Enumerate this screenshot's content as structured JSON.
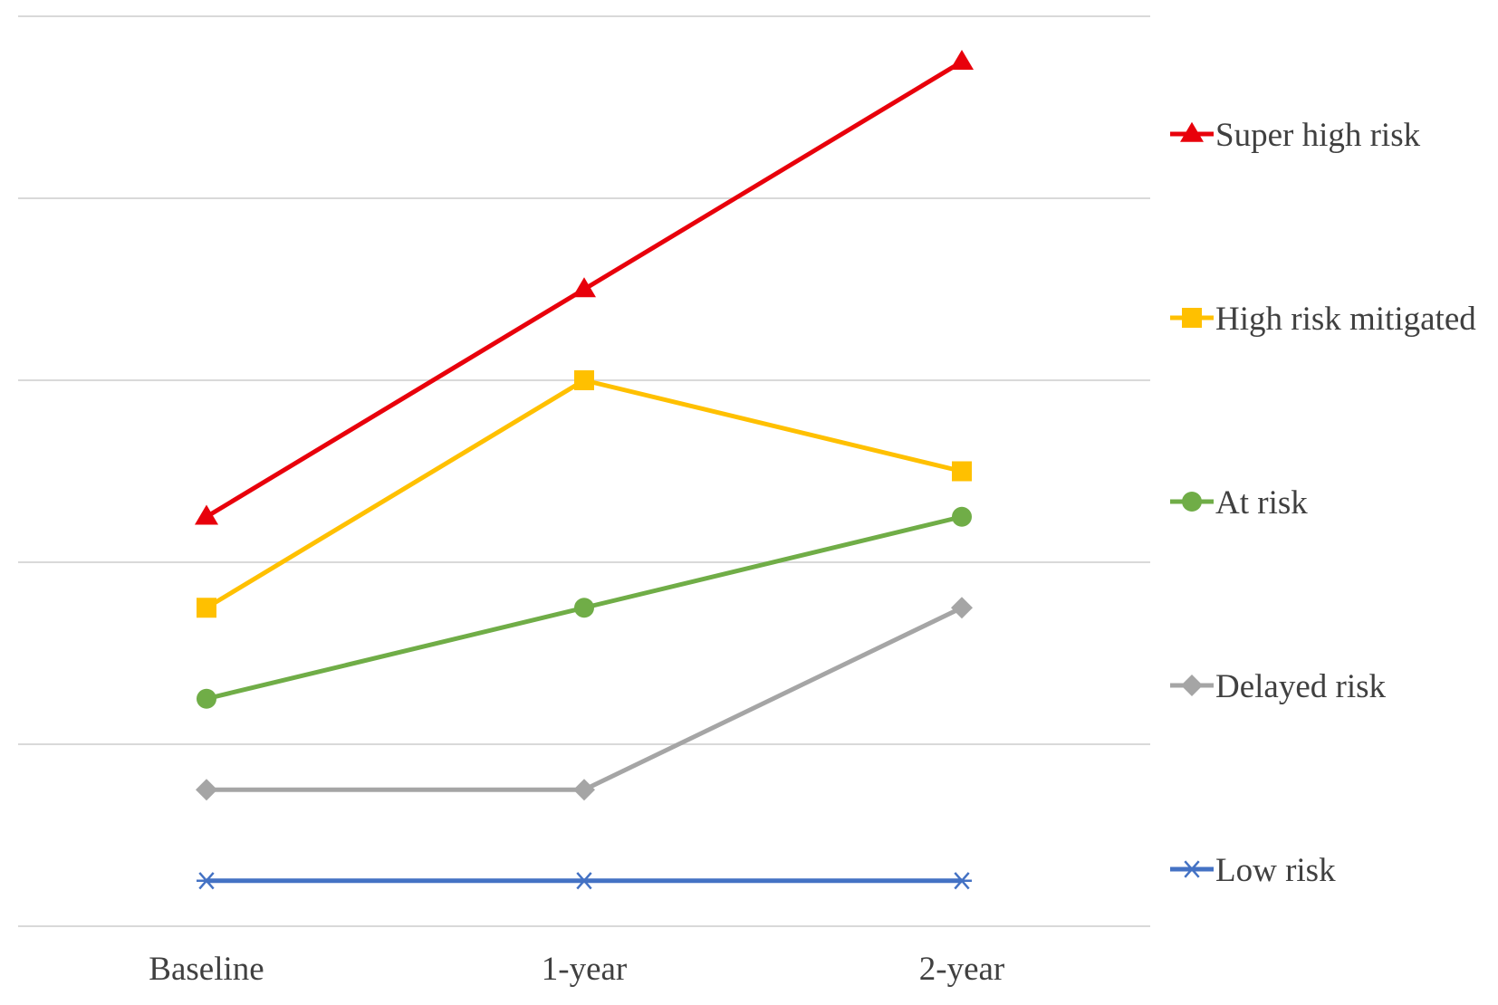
{
  "chart_data": {
    "type": "line",
    "categories": [
      "Baseline",
      "1-year",
      "2-year"
    ],
    "ylim": [
      0,
      5
    ],
    "grid": true,
    "legend_position": "right",
    "series": [
      {
        "name": "Super high risk",
        "values": [
          2.25,
          3.5,
          4.75
        ],
        "color": "#e8000b",
        "marker": "triangle"
      },
      {
        "name": "High risk mitigated",
        "values": [
          1.75,
          3.0,
          2.5
        ],
        "color": "#ffc000",
        "marker": "square"
      },
      {
        "name": "At risk",
        "values": [
          1.25,
          1.75,
          2.25
        ],
        "color": "#70ad47",
        "marker": "circle"
      },
      {
        "name": "Delayed risk",
        "values": [
          0.75,
          0.75,
          1.75
        ],
        "color": "#a5a5a5",
        "marker": "diamond"
      },
      {
        "name": "Low risk",
        "values": [
          0.25,
          0.25,
          0.25
        ],
        "color": "#4472c4",
        "marker": "asterisk"
      }
    ]
  }
}
